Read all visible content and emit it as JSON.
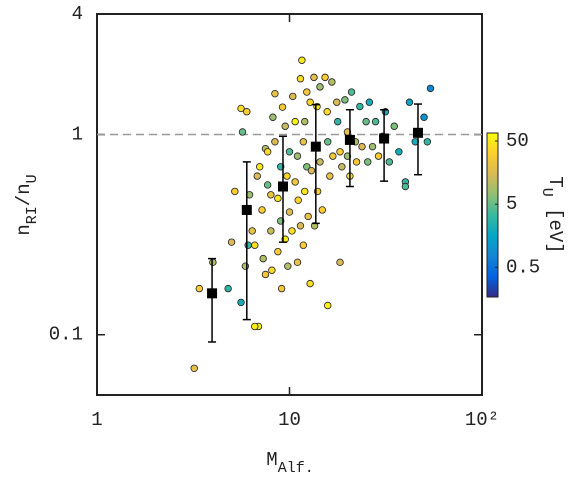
{
  "chart_data": {
    "type": "scatter",
    "xscale": "log",
    "yscale": "log",
    "xlim": [
      1,
      100
    ],
    "ylim": [
      0.05,
      4
    ],
    "xticks": [
      1,
      10,
      {
        "value": 100,
        "label": "10²"
      }
    ],
    "yticks": [
      0.1,
      1,
      4
    ],
    "xlabel": [
      {
        "text": "M"
      },
      {
        "text": "Alf.",
        "sub": true
      }
    ],
    "ylabel": [
      {
        "text": "n"
      },
      {
        "text": "RI",
        "sub": true
      },
      {
        "text": "/n"
      },
      {
        "text": "U",
        "sub": true
      }
    ],
    "clabel": [
      {
        "text": "T"
      },
      {
        "text": "U",
        "sub": true
      },
      {
        "text": " [eV]"
      }
    ],
    "hline": 1,
    "clim": [
      0.17,
      67
    ],
    "cscale": "log",
    "cticks": [
      0.5,
      5,
      50
    ],
    "colormap": [
      "#352a87",
      "#0363e1",
      "#1485d4",
      "#06a7c6",
      "#38b99e",
      "#92bf73",
      "#d9ba56",
      "#fcce2e",
      "#f9fb0e"
    ],
    "x": [
      3.2,
      3.4,
      4.0,
      5.0,
      4.8,
      5.2,
      5.6,
      5.6,
      6,
      5.7,
      6.2,
      6.4,
      6.6,
      6.9,
      6.6,
      6.8,
      7,
      7.2,
      7.3,
      7.5,
      7.5,
      7.7,
      7.7,
      8,
      8,
      8.1,
      8.2,
      8.4,
      8.4,
      8.7,
      8.7,
      9,
      9,
      9.1,
      9.2,
      9.5,
      9.5,
      9.7,
      9.8,
      10,
      10,
      10.3,
      10.4,
      10.7,
      10.7,
      11,
      11,
      11.1,
      11.4,
      11.4,
      11.6,
      11.8,
      11.8,
      12,
      12,
      12.3,
      12.3,
      12.5,
      12.8,
      12.8,
      13,
      13.4,
      13.5,
      13.9,
      14,
      14.4,
      14.4,
      14.8,
      15.3,
      15.7,
      15.8,
      15.8,
      16.2,
      16.6,
      16.8,
      17.6,
      17.8,
      18.3,
      18.3,
      18.7,
      19.4,
      20,
      20,
      20.6,
      21,
      22,
      22.3,
      23.2,
      23.8,
      25,
      25.5,
      26,
      27,
      28,
      29,
      30.5,
      31.5,
      33,
      35,
      37,
      40,
      40,
      42,
      45,
      50,
      54,
      52,
      6.1,
      5.9
    ],
    "y": [
      0.068,
      0.17,
      0.23,
      0.29,
      0.17,
      0.52,
      0.145,
      1.35,
      1.3,
      1.03,
      0.5,
      0.33,
      0.28,
      0.11,
      0.11,
      0.62,
      0.69,
      0.42,
      0.24,
      0.2,
      0.85,
      0.82,
      0.56,
      0.5,
      0.33,
      0.21,
      1.22,
      0.92,
      1.6,
      0.48,
      0.26,
      0.37,
      0.69,
      0.17,
      1.37,
      0.3,
      1.1,
      0.62,
      0.22,
      0.41,
      0.82,
      0.33,
      1.55,
      0.58,
      1.16,
      0.23,
      0.78,
      0.47,
      1.9,
      0.35,
      2.35,
      0.92,
      0.28,
      1.16,
      0.52,
      1.63,
      0.69,
      0.39,
      1.45,
      0.18,
      0.66,
      1.93,
      0.35,
      1.38,
      0.52,
      1.73,
      0.73,
      0.42,
      1.93,
      1.3,
      0.92,
      0.14,
      0.62,
      1.83,
      0.78,
      1.45,
      1.16,
      0.23,
      0.82,
      0.69,
      1.49,
      1.03,
      0.78,
      0.62,
      1.63,
      0.92,
      0.73,
      1.38,
      0.87,
      1.16,
      0.73,
      1.45,
      0.87,
      1.16,
      0.78,
      0.98,
      1.3,
      0.73,
      1.1,
      0.82,
      0.58,
      0.55,
      1.45,
      0.92,
      1.22,
      1.7,
      0.92,
      0.28,
      0.22
    ],
    "c": [
      20,
      30,
      10,
      15,
      3,
      30,
      2,
      40,
      30,
      5,
      8,
      20,
      40,
      60,
      50,
      15,
      50,
      30,
      10,
      25,
      10,
      40,
      5,
      20,
      12,
      40,
      8,
      15,
      20,
      45,
      30,
      6,
      3,
      25,
      30,
      50,
      12,
      35,
      10,
      18,
      4,
      40,
      15,
      25,
      60,
      20,
      8,
      35,
      40,
      15,
      50,
      20,
      30,
      10,
      45,
      25,
      6,
      20,
      35,
      40,
      15,
      18,
      10,
      50,
      28,
      8,
      12,
      30,
      30,
      40,
      5,
      55,
      20,
      10,
      25,
      15,
      3,
      15,
      30,
      12,
      6,
      20,
      8,
      40,
      4,
      10,
      25,
      3,
      15,
      5,
      6,
      2,
      8,
      4,
      30,
      3,
      2,
      4,
      6,
      2,
      3,
      4,
      1.5,
      2,
      1,
      0.8,
      3,
      3,
      10
    ],
    "medians": {
      "color": "#000000",
      "x": [
        3.96,
        6.0,
        9.25,
        13.7,
        20.6,
        31,
        46.5
      ],
      "values": [
        0.161,
        0.42,
        0.55,
        0.87,
        0.94,
        0.955,
        1.02
      ],
      "lower": [
        0.092,
        0.119,
        0.29,
        0.36,
        0.55,
        0.585,
        0.63
      ],
      "upper": [
        0.24,
        0.73,
        0.98,
        1.41,
        1.33,
        1.33,
        1.42
      ]
    }
  }
}
